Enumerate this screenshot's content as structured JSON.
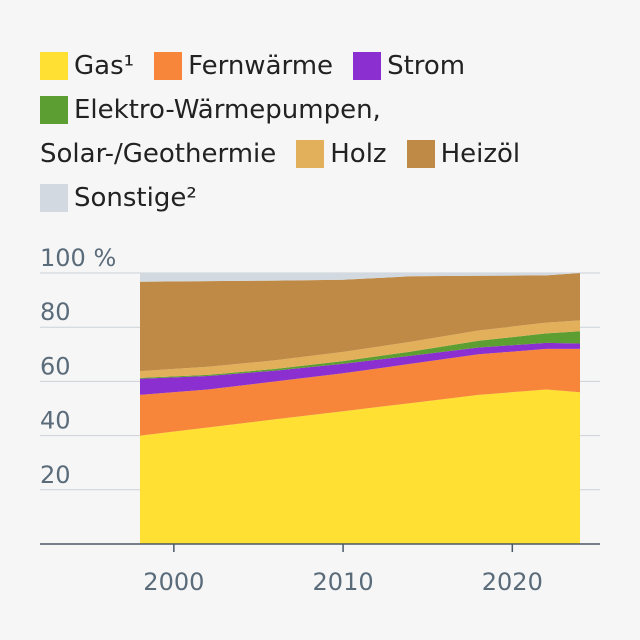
{
  "chart_data": {
    "type": "area",
    "stacked": true,
    "title": "",
    "xlabel": "",
    "ylabel": "",
    "x": [
      1998,
      2002,
      2006,
      2010,
      2014,
      2018,
      2022,
      2024
    ],
    "xlim": [
      1993,
      2025
    ],
    "ylim": [
      0,
      100
    ],
    "x_ticks": [
      "2000",
      "2010",
      "2020"
    ],
    "y_ticks": [
      "20",
      "40",
      "60",
      "80",
      "100 %"
    ],
    "y_tick_values": [
      20,
      40,
      60,
      80,
      100
    ],
    "grid": "horizontal",
    "legend_position": "top",
    "series": [
      {
        "name": "Gas¹",
        "color": "#ffe033",
        "values": [
          40,
          43,
          46,
          49,
          52,
          55,
          57,
          56
        ]
      },
      {
        "name": "Fernwärme",
        "color": "#f7863b",
        "values": [
          15,
          14,
          14,
          14,
          14.5,
          15,
          15,
          16
        ]
      },
      {
        "name": "Strom",
        "color": "#8b2fd0",
        "values": [
          6,
          5,
          4,
          3.5,
          3,
          2.5,
          2.2,
          2
        ]
      },
      {
        "name": "Elektro-Wärmepumpen, Solar-/Geothermie",
        "color": "#5d9e32",
        "values": [
          0.3,
          0.4,
          0.6,
          1,
          1.5,
          2.5,
          3.5,
          4.5
        ]
      },
      {
        "name": "Holz",
        "color": "#e2b05a",
        "values": [
          2.5,
          3,
          3.2,
          3.4,
          3.6,
          3.8,
          4,
          4
        ]
      },
      {
        "name": "Heizöl",
        "color": "#bf8a45",
        "values": [
          33,
          31.6,
          29.4,
          26.6,
          24.2,
          20.2,
          17.4,
          17.5
        ]
      },
      {
        "name": "Sonstige²",
        "color": "#d2d9e0",
        "values": [
          3.2,
          3,
          2.8,
          2.5,
          1.2,
          1,
          0.9,
          0
        ]
      }
    ]
  }
}
